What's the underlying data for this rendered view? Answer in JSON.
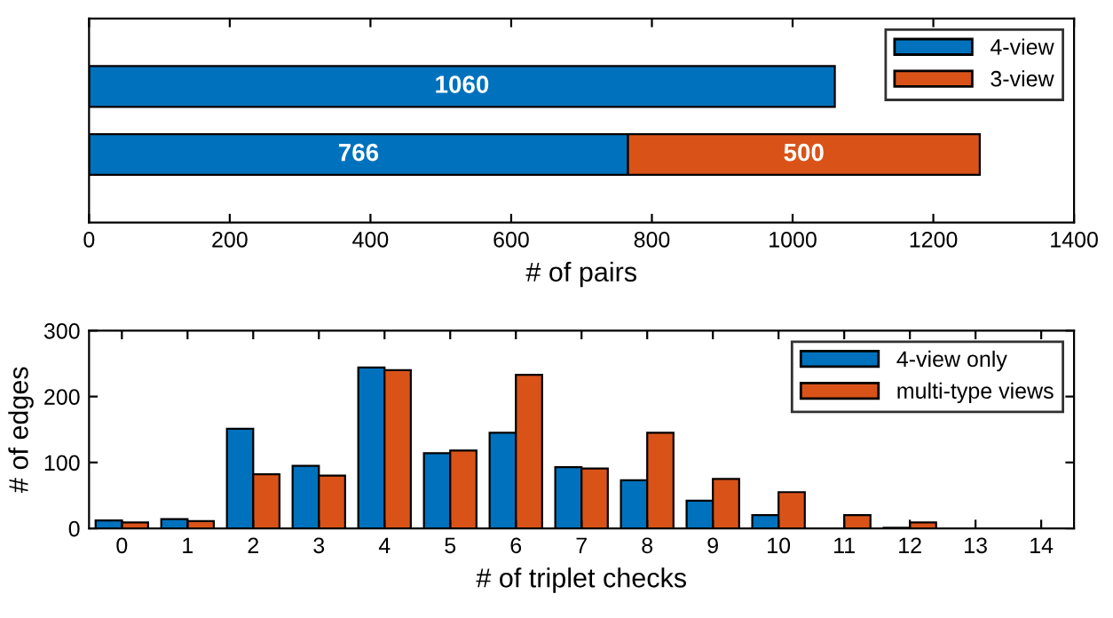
{
  "chart_data": [
    {
      "type": "bar",
      "orientation": "horizontal",
      "stacked": true,
      "xlabel": "# of pairs",
      "categories": [
        null,
        null
      ],
      "series": [
        {
          "name": "4-view",
          "color": "#0072bd",
          "values": [
            1060,
            766
          ]
        },
        {
          "name": "3-view",
          "color": "#d95319",
          "values": [
            null,
            500
          ]
        }
      ],
      "xlim": [
        0,
        1400
      ],
      "xticks": [
        0,
        200,
        400,
        600,
        800,
        1000,
        1200,
        1400
      ],
      "data_labels": true,
      "legend": "top right"
    },
    {
      "type": "bar",
      "xlabel": "# of triplet checks",
      "ylabel": "# of edges",
      "categories": [
        "0",
        "1",
        "2",
        "3",
        "4",
        "5",
        "6",
        "7",
        "8",
        "9",
        "10",
        "11",
        "12",
        "13",
        "14"
      ],
      "series": [
        {
          "name": "4-view only",
          "color": "#0072bd",
          "values": [
            12,
            14,
            151,
            95,
            244,
            114,
            145,
            93,
            73,
            42,
            20,
            null,
            1,
            null,
            null
          ]
        },
        {
          "name": "multi-type views",
          "color": "#d95319",
          "values": [
            9,
            11,
            82,
            80,
            240,
            118,
            233,
            91,
            145,
            75,
            55,
            20,
            9,
            null,
            null
          ]
        }
      ],
      "ylim": [
        0,
        300
      ],
      "yticks": [
        0,
        100,
        200,
        300
      ],
      "legend": "top right"
    }
  ]
}
